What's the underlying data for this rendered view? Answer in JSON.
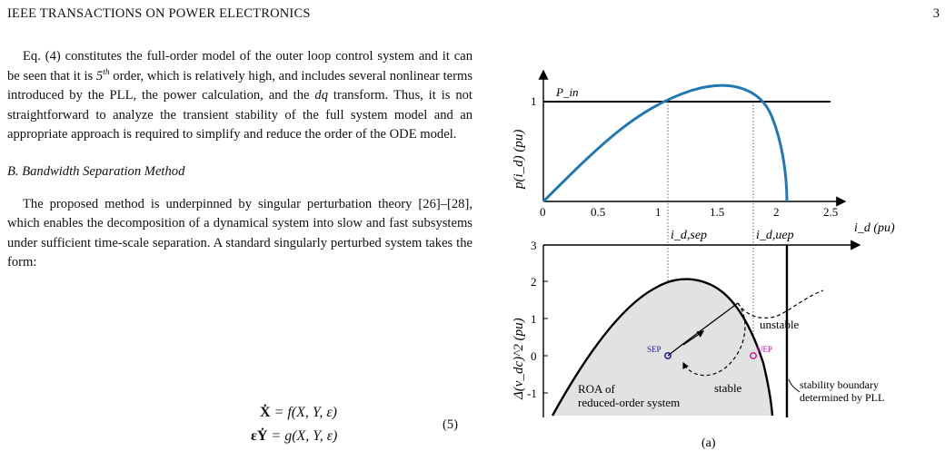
{
  "header": {
    "journal": "IEEE TRANSACTIONS ON POWER ELECTRONICS",
    "page_number": "3"
  },
  "body": {
    "para1": "Eq. (4) constitutes the full-order model of the outer loop control system and it can be seen that it is 5th order, which is relatively high, and includes several nonlinear terms introduced by the PLL, the power calculation, and the dq transform. Thus, it is not straightforward to analyze the transient stability of the full system model and an appropriate approach is required to simplify and reduce the order of the ODE model.",
    "para1_parts": {
      "a": "Eq. (4) constitutes the full-order model of the outer loop control system and it can be seen that it is ",
      "b": "5",
      "c": "th",
      "d": " order, which is relatively high, and includes several nonlinear terms introduced by the PLL, the power calculation, and the ",
      "e": "dq",
      "f": " transform. Thus, it is not straightforward to analyze the transient stability of the full system model and an appropriate approach is required to simplify and reduce the order of the ODE model."
    },
    "subsection_title": "B. Bandwidth Separation Method",
    "para2": "The proposed method is underpinned by singular perturbation theory [26]–[28], which enables the decomposition of a dynamical system into slow and fast subsystems under sufficient time-scale separation. A standard singularly perturbed system takes the form:",
    "equation": {
      "line1_lhs": "Ẋ",
      "line1_rhs": " = f(X, Y, ε)",
      "line2_lhs": "εẎ",
      "line2_rhs": " = g(X, Y, ε)",
      "number": "(5)"
    }
  },
  "figure": {
    "top_panel": {
      "ylabel": "p(i_d) (pu)",
      "xlabel": "i_d (pu)",
      "y_tick": "1",
      "x_ticks": [
        "0",
        "0.5",
        "1",
        "1.5",
        "2",
        "2.5"
      ],
      "line_label": "P_in"
    },
    "bottom_panel": {
      "ylabel": "Δ(v_dc)^2 (pu)",
      "y_ticks": [
        "3",
        "2",
        "1",
        "0",
        "-1"
      ],
      "sep_label": "SEP",
      "uep_label": "UEP",
      "id_sep_label": "i_d,sep",
      "id_uep_label": "i_d,uep",
      "stable_label": "stable",
      "unstable_label": "unstable",
      "roa_label_1": "ROA of",
      "roa_label_2": "reduced-order system",
      "boundary_label_1": "stability boundary",
      "boundary_label_2": "determined by PLL"
    },
    "caption_fragment": "(a)",
    "colors": {
      "curve": "#1f77b4",
      "sep": "#1a1aa6",
      "uep": "#c21ca8",
      "roa_fill": "#e2e2e2"
    }
  }
}
